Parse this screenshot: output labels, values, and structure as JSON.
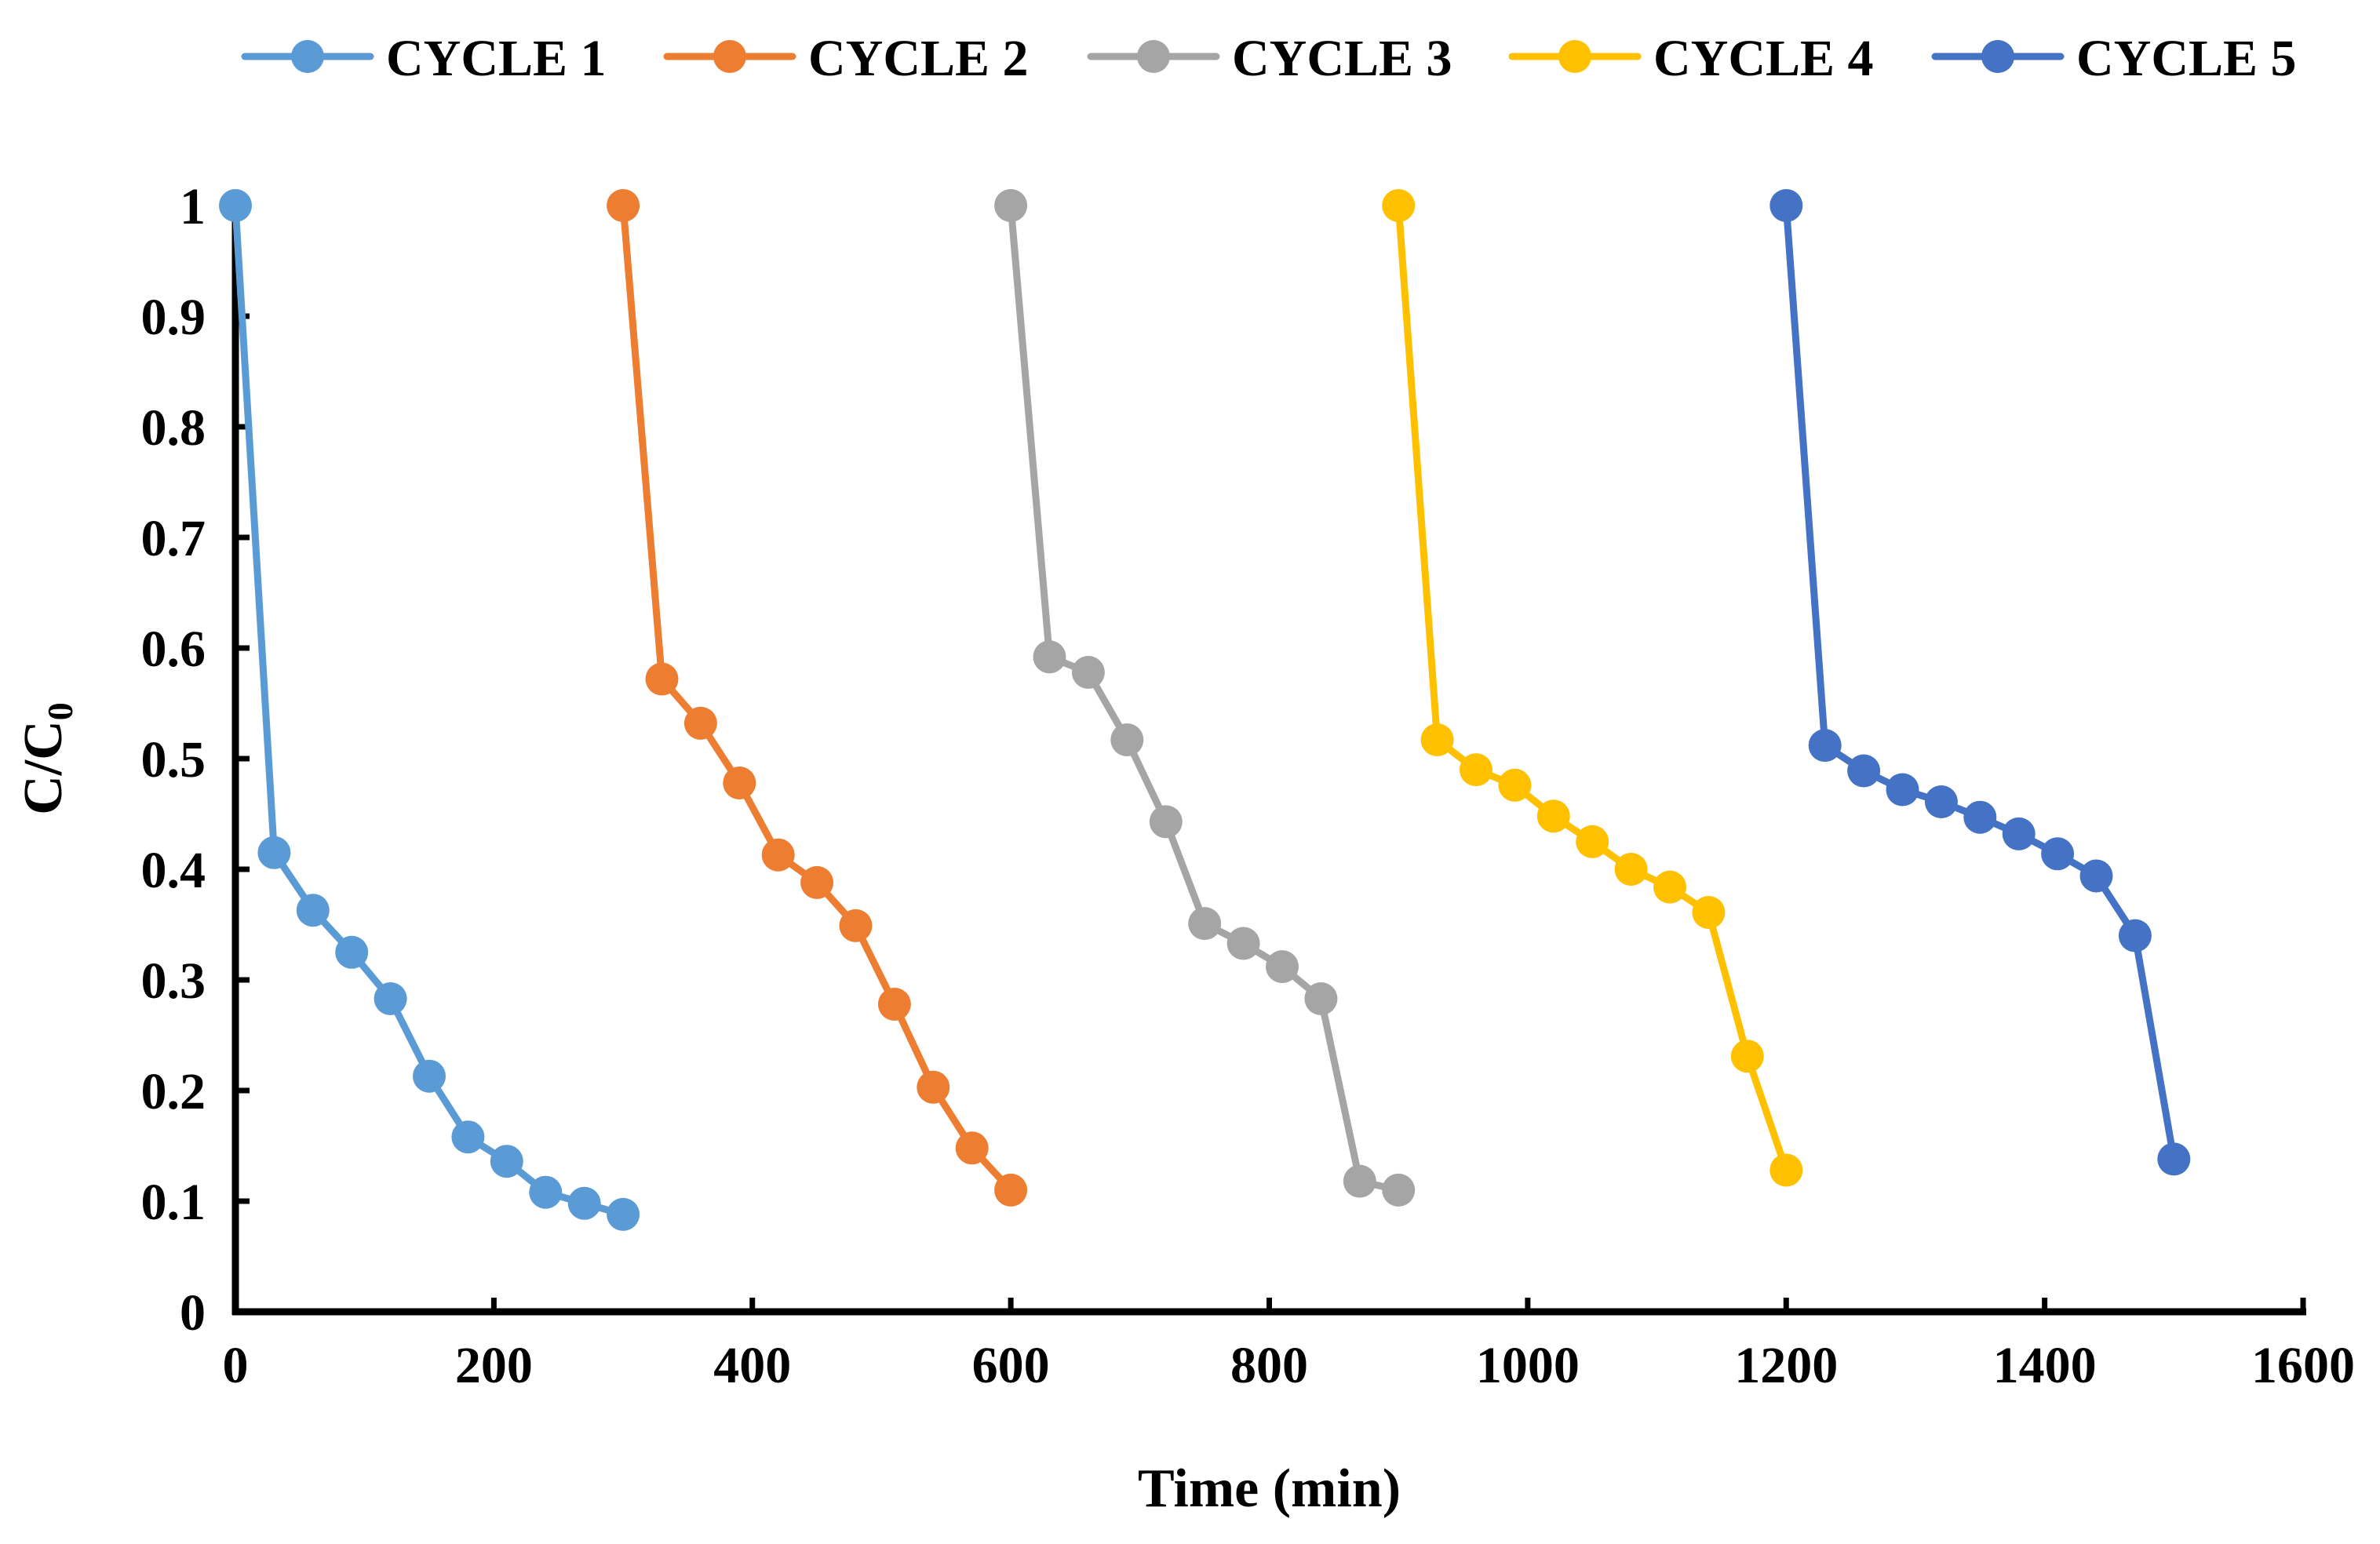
{
  "chart_data": {
    "type": "line",
    "xlabel": "Time (min)",
    "ylabel": "C/C",
    "ylabel_subscript": "0",
    "xlim": [
      0,
      1600
    ],
    "ylim": [
      0,
      1
    ],
    "x_ticks": [
      0,
      200,
      400,
      600,
      800,
      1000,
      1200,
      1400,
      1600
    ],
    "y_ticks": [
      0,
      0.1,
      0.2,
      0.3,
      0.4,
      0.5,
      0.6,
      0.7,
      0.8,
      0.9,
      1
    ],
    "x_tick_labels": [
      "0",
      "200",
      "400",
      "600",
      "800",
      "1000",
      "1200",
      "1400",
      "1600"
    ],
    "y_tick_labels": [
      "0",
      "0.1",
      "0.2",
      "0.3",
      "0.4",
      "0.5",
      "0.6",
      "0.7",
      "0.8",
      "0.9",
      "1"
    ],
    "grid": false,
    "legend_position": "top",
    "series": [
      {
        "name": "CYCLE 1",
        "color": "#5B9BD5",
        "x": [
          0,
          30,
          60,
          90,
          120,
          150,
          180,
          210,
          240,
          270,
          300
        ],
        "y": [
          1.0,
          0.415,
          0.363,
          0.325,
          0.283,
          0.213,
          0.158,
          0.136,
          0.108,
          0.098,
          0.088
        ]
      },
      {
        "name": "CYCLE 2",
        "color": "#ED7D31",
        "x": [
          300,
          330,
          360,
          390,
          420,
          450,
          480,
          510,
          540,
          570,
          600
        ],
        "y": [
          1.0,
          0.572,
          0.532,
          0.478,
          0.413,
          0.388,
          0.349,
          0.278,
          0.203,
          0.148,
          0.11
        ]
      },
      {
        "name": "CYCLE 3",
        "color": "#A5A5A5",
        "x": [
          600,
          630,
          660,
          690,
          720,
          750,
          780,
          810,
          840,
          870,
          900
        ],
        "y": [
          1.0,
          0.592,
          0.578,
          0.517,
          0.443,
          0.351,
          0.333,
          0.312,
          0.283,
          0.118,
          0.11
        ]
      },
      {
        "name": "CYCLE 4",
        "color": "#FFC000",
        "x": [
          900,
          930,
          960,
          990,
          1020,
          1050,
          1080,
          1110,
          1140,
          1170,
          1200
        ],
        "y": [
          1.0,
          0.517,
          0.49,
          0.476,
          0.448,
          0.425,
          0.4,
          0.384,
          0.361,
          0.231,
          0.128
        ]
      },
      {
        "name": "CYCLE 5",
        "color": "#4472C4",
        "x": [
          1200,
          1230,
          1260,
          1290,
          1320,
          1350,
          1380,
          1410,
          1440,
          1470,
          1500
        ],
        "y": [
          1.0,
          0.512,
          0.489,
          0.472,
          0.461,
          0.447,
          0.432,
          0.414,
          0.394,
          0.34,
          0.138
        ]
      }
    ]
  }
}
